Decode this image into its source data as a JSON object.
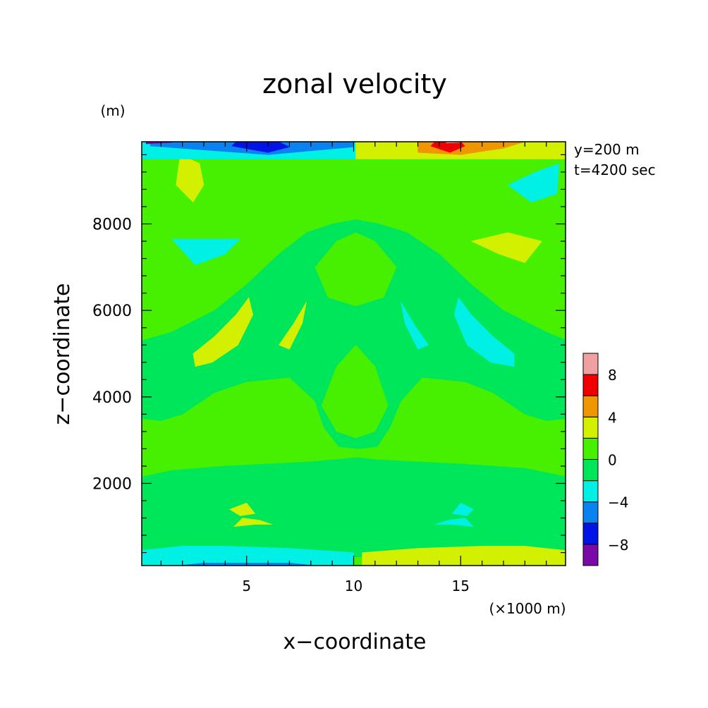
{
  "chart_data": {
    "type": "heatmap",
    "title": "zonal velocity",
    "xlabel": "x−coordinate",
    "ylabel": "z−coordinate",
    "x_unit": "(×1000 m)",
    "y_unit": "(m)",
    "annotations": [
      "y=200 m",
      "t=4200 sec"
    ],
    "xlim": [
      0.1,
      19.9
    ],
    "ylim": [
      100,
      9900
    ],
    "x_ticks": [
      5,
      10,
      15
    ],
    "y_ticks": [
      2000,
      4000,
      6000,
      8000
    ],
    "x_tick_labels": [
      "5",
      "10",
      "15"
    ],
    "y_tick_labels": [
      "2000",
      "4000",
      "6000",
      "8000"
    ],
    "x_minor_step": 1,
    "y_minor_step": 400,
    "colorbar": {
      "levels": [
        -10,
        -8,
        -6,
        -4,
        -2,
        0,
        2,
        4,
        6,
        8,
        10
      ],
      "colors": [
        "#7a0aa8",
        "#0014e6",
        "#0a82f0",
        "#00f0e6",
        "#00e65a",
        "#46f000",
        "#d2f000",
        "#f09600",
        "#f00000",
        "#f0a0a0"
      ],
      "tick_values": [
        -8,
        -4,
        0,
        4,
        8
      ],
      "tick_labels": [
        "−8",
        "−4",
        "0",
        "4",
        "8"
      ]
    },
    "background_value": 1,
    "regions": [
      {
        "value": -1,
        "points": [
          [
            0.1,
            300
          ],
          [
            20,
            300
          ],
          [
            20,
            2150
          ],
          [
            18,
            2350
          ],
          [
            15,
            2450
          ],
          [
            11,
            2550
          ],
          [
            10.2,
            2600
          ],
          [
            8,
            2500
          ],
          [
            4,
            2400
          ],
          [
            1.5,
            2300
          ],
          [
            0.1,
            2150
          ]
        ]
      },
      {
        "value": -1,
        "points": [
          [
            0.1,
            3500
          ],
          [
            1,
            3450
          ],
          [
            2,
            3600
          ],
          [
            3.5,
            4100
          ],
          [
            5,
            4350
          ],
          [
            7,
            4450
          ],
          [
            8.2,
            3900
          ],
          [
            8.6,
            3300
          ],
          [
            9.3,
            2850
          ],
          [
            10.2,
            2800
          ],
          [
            11.1,
            2850
          ],
          [
            11.7,
            3300
          ],
          [
            12.2,
            3900
          ],
          [
            13.2,
            4450
          ],
          [
            15.2,
            4350
          ],
          [
            16.5,
            4100
          ],
          [
            18,
            3600
          ],
          [
            19,
            3450
          ],
          [
            20,
            3500
          ],
          [
            20,
            5300
          ],
          [
            19,
            5500
          ],
          [
            17,
            6000
          ],
          [
            15.5,
            6600
          ],
          [
            14,
            7300
          ],
          [
            12.5,
            7800
          ],
          [
            11.2,
            8000
          ],
          [
            10.1,
            8100
          ],
          [
            9,
            8000
          ],
          [
            7.8,
            7800
          ],
          [
            6.5,
            7300
          ],
          [
            5,
            6600
          ],
          [
            3.5,
            6000
          ],
          [
            1.5,
            5500
          ],
          [
            0.1,
            5300
          ]
        ]
      },
      {
        "value": 1,
        "points": [
          [
            8.5,
            3800
          ],
          [
            9.2,
            3200
          ],
          [
            10.1,
            3050
          ],
          [
            11,
            3200
          ],
          [
            11.6,
            3800
          ],
          [
            11,
            4700
          ],
          [
            10.1,
            5200
          ],
          [
            9.2,
            4700
          ]
        ]
      },
      {
        "value": 1,
        "points": [
          [
            8.2,
            7000
          ],
          [
            8.8,
            6300
          ],
          [
            10.1,
            6100
          ],
          [
            11.4,
            6300
          ],
          [
            12,
            7000
          ],
          [
            11,
            7600
          ],
          [
            10.1,
            7800
          ],
          [
            9.2,
            7600
          ]
        ]
      },
      {
        "value": 1,
        "points": [
          [
            0.1,
            8300
          ],
          [
            3,
            8600
          ],
          [
            6,
            9000
          ],
          [
            8.2,
            9200
          ],
          [
            10.1,
            9300
          ],
          [
            12,
            9200
          ],
          [
            14.2,
            9000
          ],
          [
            17,
            8600
          ],
          [
            20,
            8300
          ],
          [
            20,
            9500
          ],
          [
            0.1,
            9500
          ]
        ]
      },
      {
        "value": 3,
        "points": [
          [
            1.7,
            8900
          ],
          [
            2.5,
            8500
          ],
          [
            3,
            8900
          ],
          [
            2.8,
            9400
          ],
          [
            1.9,
            9600
          ]
        ]
      },
      {
        "value": -3,
        "points": [
          [
            17.2,
            8900
          ],
          [
            18.3,
            8500
          ],
          [
            19.5,
            8700
          ],
          [
            19.6,
            9400
          ],
          [
            18.5,
            9200
          ]
        ]
      },
      {
        "value": -3,
        "points": [
          [
            1.5,
            7650
          ],
          [
            2.6,
            7050
          ],
          [
            4,
            7300
          ],
          [
            4.7,
            7650
          ],
          [
            3.2,
            7650
          ]
        ]
      },
      {
        "value": 3,
        "points": [
          [
            15.5,
            7600
          ],
          [
            16.8,
            7300
          ],
          [
            18,
            7100
          ],
          [
            18.8,
            7600
          ],
          [
            17.2,
            7800
          ]
        ]
      },
      {
        "value": 3,
        "points": [
          [
            2.5,
            5000
          ],
          [
            3.5,
            5400
          ],
          [
            4.5,
            5900
          ],
          [
            5.1,
            6300
          ],
          [
            5.3,
            5900
          ],
          [
            4.6,
            5200
          ],
          [
            3.4,
            4800
          ],
          [
            2.6,
            4700
          ]
        ]
      },
      {
        "value": -3,
        "points": [
          [
            14.9,
            6300
          ],
          [
            15.5,
            5900
          ],
          [
            16.5,
            5400
          ],
          [
            17.5,
            5000
          ],
          [
            17.5,
            4700
          ],
          [
            16.4,
            4800
          ],
          [
            15.3,
            5200
          ],
          [
            14.7,
            5900
          ]
        ]
      },
      {
        "value": 3,
        "points": [
          [
            6.5,
            5200
          ],
          [
            7.2,
            5700
          ],
          [
            7.8,
            6200
          ],
          [
            7.6,
            5700
          ],
          [
            7,
            5100
          ]
        ]
      },
      {
        "value": -3,
        "points": [
          [
            13.5,
            5200
          ],
          [
            12.8,
            5700
          ],
          [
            12.2,
            6200
          ],
          [
            12.4,
            5700
          ],
          [
            13,
            5100
          ]
        ]
      },
      {
        "value": 3,
        "points": [
          [
            4.2,
            1400
          ],
          [
            5,
            1550
          ],
          [
            5.4,
            1300
          ],
          [
            4.7,
            1250
          ]
        ]
      },
      {
        "value": 3,
        "points": [
          [
            4.4,
            1000
          ],
          [
            5.4,
            1050
          ],
          [
            6.2,
            1050
          ],
          [
            5.6,
            1150
          ],
          [
            4.8,
            1200
          ]
        ]
      },
      {
        "value": -3,
        "points": [
          [
            15.6,
            1400
          ],
          [
            15,
            1550
          ],
          [
            14.6,
            1300
          ],
          [
            15.3,
            1250
          ]
        ]
      },
      {
        "value": -3,
        "points": [
          [
            15.6,
            1000
          ],
          [
            14.6,
            1050
          ],
          [
            13.8,
            1050
          ],
          [
            14.4,
            1150
          ],
          [
            15.2,
            1200
          ]
        ]
      },
      {
        "value": -3,
        "points": [
          [
            0.1,
            100
          ],
          [
            10,
            100
          ],
          [
            10,
            400
          ],
          [
            7,
            500
          ],
          [
            4,
            550
          ],
          [
            2,
            550
          ],
          [
            0.1,
            450
          ]
        ]
      },
      {
        "value": 3,
        "points": [
          [
            10.4,
            100
          ],
          [
            19.9,
            100
          ],
          [
            19.9,
            450
          ],
          [
            18,
            550
          ],
          [
            16,
            550
          ],
          [
            13,
            500
          ],
          [
            10.4,
            400
          ]
        ]
      },
      {
        "value": -5,
        "points": [
          [
            2,
            110
          ],
          [
            8,
            110
          ],
          [
            7,
            160
          ],
          [
            3,
            160
          ]
        ]
      },
      {
        "value": -3,
        "points": [
          [
            0.1,
            9500
          ],
          [
            10.1,
            9500
          ],
          [
            10.1,
            9900
          ],
          [
            0.1,
            9900
          ]
        ]
      },
      {
        "value": -5,
        "points": [
          [
            0.5,
            9800
          ],
          [
            6,
            9600
          ],
          [
            10,
            9780
          ],
          [
            10,
            9900
          ],
          [
            0.5,
            9900
          ]
        ]
      },
      {
        "value": -7,
        "points": [
          [
            4.3,
            9800
          ],
          [
            6,
            9650
          ],
          [
            7,
            9780
          ],
          [
            6.5,
            9900
          ],
          [
            4.5,
            9900
          ]
        ]
      },
      {
        "value": -9,
        "points": [
          [
            0.3,
            9850
          ],
          [
            1.5,
            9880
          ],
          [
            1.5,
            9900
          ],
          [
            0.3,
            9900
          ]
        ]
      },
      {
        "value": 3,
        "points": [
          [
            10.1,
            9500
          ],
          [
            20,
            9500
          ],
          [
            20,
            9900
          ],
          [
            10.1,
            9900
          ]
        ]
      },
      {
        "value": 5,
        "points": [
          [
            13,
            9650
          ],
          [
            15,
            9600
          ],
          [
            17,
            9750
          ],
          [
            18,
            9900
          ],
          [
            13,
            9900
          ]
        ]
      },
      {
        "value": 7,
        "points": [
          [
            13.6,
            9800
          ],
          [
            14.5,
            9650
          ],
          [
            15.2,
            9800
          ],
          [
            15,
            9900
          ],
          [
            13.8,
            9900
          ]
        ]
      },
      {
        "value": 9,
        "points": [
          [
            14.3,
            9870
          ],
          [
            15,
            9880
          ],
          [
            14.8,
            9900
          ],
          [
            14.4,
            9900
          ]
        ]
      }
    ]
  }
}
